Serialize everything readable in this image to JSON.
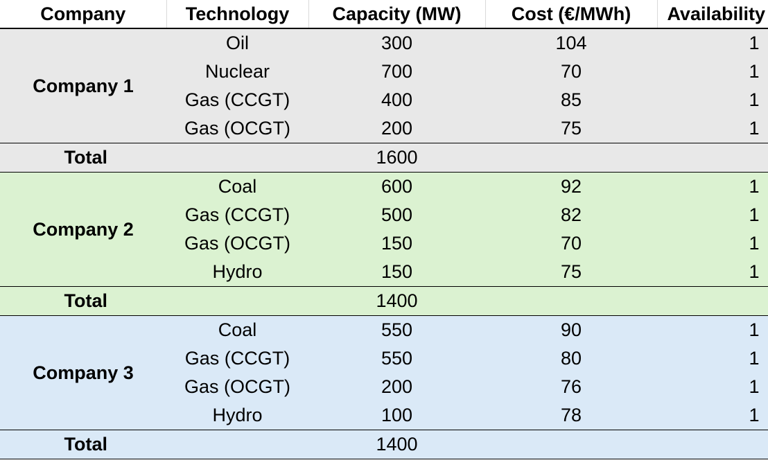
{
  "headers": [
    "Company",
    "Technology",
    "Capacity (MW)",
    "Cost (€/MWh)",
    "Availability"
  ],
  "groups": [
    {
      "company": "Company 1",
      "rows": [
        {
          "technology": "Oil",
          "capacity": "300",
          "cost": "104",
          "availability": "1"
        },
        {
          "technology": "Nuclear",
          "capacity": "700",
          "cost": "70",
          "availability": "1"
        },
        {
          "technology": "Gas (CCGT)",
          "capacity": "400",
          "cost": "85",
          "availability": "1"
        },
        {
          "technology": "Gas (OCGT)",
          "capacity": "200",
          "cost": "75",
          "availability": "1"
        }
      ],
      "total_label": "Total",
      "total_capacity": "1600",
      "color": "#e8e8e8"
    },
    {
      "company": "Company 2",
      "rows": [
        {
          "technology": "Coal",
          "capacity": "600",
          "cost": "92",
          "availability": "1"
        },
        {
          "technology": "Gas (CCGT)",
          "capacity": "500",
          "cost": "82",
          "availability": "1"
        },
        {
          "technology": "Gas (OCGT)",
          "capacity": "150",
          "cost": "70",
          "availability": "1"
        },
        {
          "technology": "Hydro",
          "capacity": "150",
          "cost": "75",
          "availability": "1"
        }
      ],
      "total_label": "Total",
      "total_capacity": "1400",
      "color": "#dbf2d1"
    },
    {
      "company": "Company 3",
      "rows": [
        {
          "technology": "Coal",
          "capacity": "550",
          "cost": "90",
          "availability": "1"
        },
        {
          "technology": "Gas (CCGT)",
          "capacity": "550",
          "cost": "80",
          "availability": "1"
        },
        {
          "technology": "Gas (OCGT)",
          "capacity": "200",
          "cost": "76",
          "availability": "1"
        },
        {
          "technology": "Hydro",
          "capacity": "100",
          "cost": "78",
          "availability": "1"
        }
      ],
      "total_label": "Total",
      "total_capacity": "1400",
      "color": "#dae9f7"
    }
  ]
}
